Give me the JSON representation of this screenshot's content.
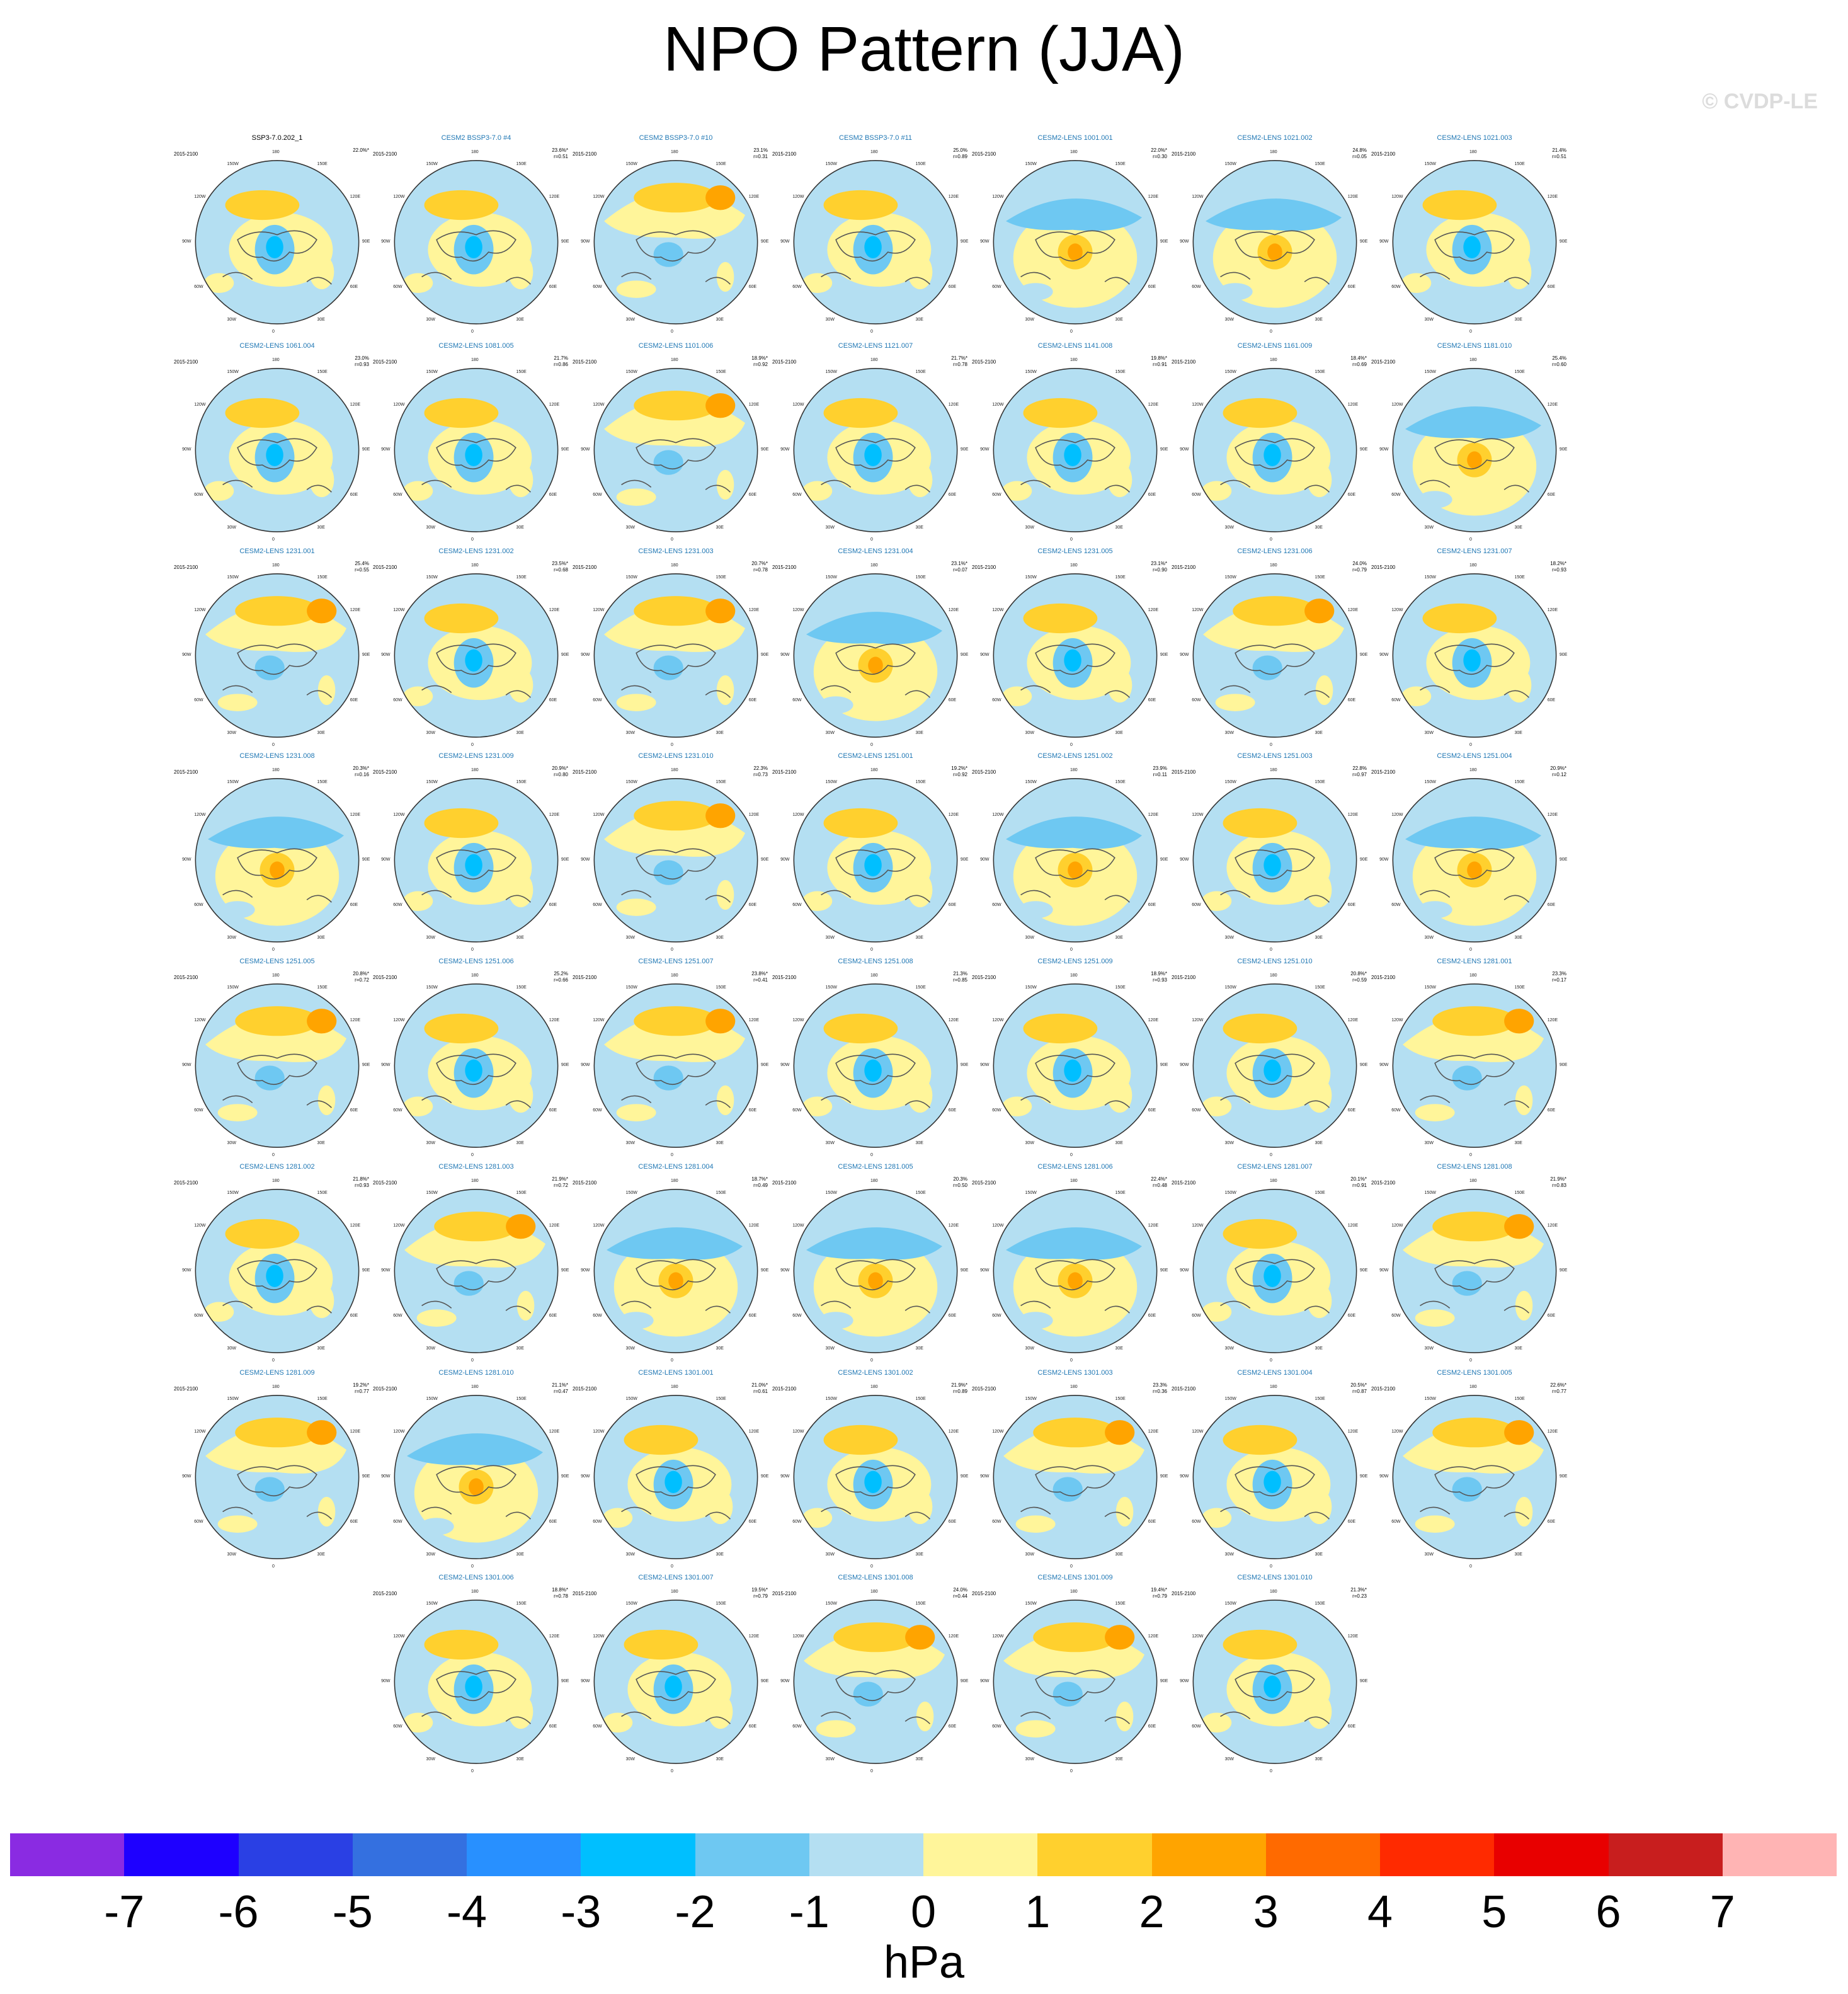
{
  "title": "NPO Pattern (JJA)",
  "copyright": "© CVDP-LE",
  "units": "hPa",
  "panel_period": "2015-2100",
  "map_labels": {
    "lon_top": "180",
    "lon_ul": "150W",
    "lon_ur": "150E",
    "lon_left_upper": "120W",
    "lon_right_upper": "120E",
    "lon_left": "90W",
    "lon_right": "90E",
    "lon_left_lower": "60W",
    "lon_right_lower": "60E",
    "lon_ll": "30W",
    "lon_lr": "30E",
    "lon_bottom": "0"
  },
  "colorbar": {
    "ticks": [
      "-7",
      "-6",
      "-5",
      "-4",
      "-3",
      "-2",
      "-1",
      "0",
      "1",
      "2",
      "3",
      "4",
      "5",
      "6",
      "7"
    ],
    "colors": [
      "#8a2be2",
      "#1e00ff",
      "#2a40e4",
      "#3470e0",
      "#2890ff",
      "#00bfff",
      "#6ec8f2",
      "#b4dff2",
      "#fff59a",
      "#ffd02e",
      "#ffa400",
      "#ff6a00",
      "#ff2a00",
      "#e80000",
      "#c81e1e",
      "#ffb4b4"
    ]
  },
  "panels": [
    {
      "title": "SSP3-7.0.202_1",
      "pct": "22.0%*",
      "r": "",
      "pattern": "A"
    },
    {
      "title": "CESM2 BSSP3-7.0 #4",
      "pct": "23.6%*",
      "r": "r=0.51",
      "pattern": "A"
    },
    {
      "title": "CESM2 BSSP3-7.0 #10",
      "pct": "23.1%",
      "r": "r=0.31",
      "pattern": "B"
    },
    {
      "title": "CESM2 BSSP3-7.0 #11",
      "pct": "25.0%",
      "r": "r=0.89",
      "pattern": "A"
    },
    {
      "title": "CESM2-LENS 1001.001",
      "pct": "22.0%*",
      "r": "r=0.30",
      "pattern": "C"
    },
    {
      "title": "CESM2-LENS 1021.002",
      "pct": "24.8%",
      "r": "r=0.05",
      "pattern": "C"
    },
    {
      "title": "CESM2-LENS 1021.003",
      "pct": "21.4%",
      "r": "r=0.51",
      "pattern": "A"
    },
    {
      "title": "CESM2-LENS 1061.004",
      "pct": "23.0%",
      "r": "r=0.93",
      "pattern": "A"
    },
    {
      "title": "CESM2-LENS 1081.005",
      "pct": "21.7%",
      "r": "r=0.86",
      "pattern": "A"
    },
    {
      "title": "CESM2-LENS 1101.006",
      "pct": "18.9%*",
      "r": "r=0.92",
      "pattern": "B"
    },
    {
      "title": "CESM2-LENS 1121.007",
      "pct": "21.7%*",
      "r": "r=0.78",
      "pattern": "A"
    },
    {
      "title": "CESM2-LENS 1141.008",
      "pct": "19.8%*",
      "r": "r=0.91",
      "pattern": "A"
    },
    {
      "title": "CESM2-LENS 1161.009",
      "pct": "18.4%*",
      "r": "r=0.69",
      "pattern": "A"
    },
    {
      "title": "CESM2-LENS 1181.010",
      "pct": "25.4%",
      "r": "r=0.60",
      "pattern": "C"
    },
    {
      "title": "CESM2-LENS 1231.001",
      "pct": "25.4%",
      "r": "r=0.55",
      "pattern": "B"
    },
    {
      "title": "CESM2-LENS 1231.002",
      "pct": "23.5%*",
      "r": "r=0.68",
      "pattern": "A"
    },
    {
      "title": "CESM2-LENS 1231.003",
      "pct": "20.7%*",
      "r": "r=0.78",
      "pattern": "B"
    },
    {
      "title": "CESM2-LENS 1231.004",
      "pct": "23.1%*",
      "r": "r=0.07",
      "pattern": "C"
    },
    {
      "title": "CESM2-LENS 1231.005",
      "pct": "23.1%*",
      "r": "r=0.90",
      "pattern": "A"
    },
    {
      "title": "CESM2-LENS 1231.006",
      "pct": "24.0%",
      "r": "r=0.79",
      "pattern": "B"
    },
    {
      "title": "CESM2-LENS 1231.007",
      "pct": "18.2%*",
      "r": "r=0.93",
      "pattern": "A"
    },
    {
      "title": "CESM2-LENS 1231.008",
      "pct": "20.3%*",
      "r": "r=0.16",
      "pattern": "C"
    },
    {
      "title": "CESM2-LENS 1231.009",
      "pct": "20.9%*",
      "r": "r=0.80",
      "pattern": "A"
    },
    {
      "title": "CESM2-LENS 1231.010",
      "pct": "22.3%",
      "r": "r=0.73",
      "pattern": "B"
    },
    {
      "title": "CESM2-LENS 1251.001",
      "pct": "19.2%*",
      "r": "r=0.92",
      "pattern": "A"
    },
    {
      "title": "CESM2-LENS 1251.002",
      "pct": "23.9%",
      "r": "r=0.11",
      "pattern": "C"
    },
    {
      "title": "CESM2-LENS 1251.003",
      "pct": "22.8%",
      "r": "r=0.97",
      "pattern": "A"
    },
    {
      "title": "CESM2-LENS 1251.004",
      "pct": "20.9%*",
      "r": "r=0.12",
      "pattern": "C"
    },
    {
      "title": "CESM2-LENS 1251.005",
      "pct": "20.8%*",
      "r": "r=0.72",
      "pattern": "B"
    },
    {
      "title": "CESM2-LENS 1251.006",
      "pct": "25.2%",
      "r": "r=0.66",
      "pattern": "A"
    },
    {
      "title": "CESM2-LENS 1251.007",
      "pct": "23.8%*",
      "r": "r=0.41",
      "pattern": "B"
    },
    {
      "title": "CESM2-LENS 1251.008",
      "pct": "21.3%",
      "r": "r=0.85",
      "pattern": "A"
    },
    {
      "title": "CESM2-LENS 1251.009",
      "pct": "18.9%*",
      "r": "r=0.93",
      "pattern": "A"
    },
    {
      "title": "CESM2-LENS 1251.010",
      "pct": "20.8%*",
      "r": "r=0.59",
      "pattern": "A"
    },
    {
      "title": "CESM2-LENS 1281.001",
      "pct": "23.3%",
      "r": "r=0.17",
      "pattern": "B"
    },
    {
      "title": "CESM2-LENS 1281.002",
      "pct": "21.8%*",
      "r": "r=0.93",
      "pattern": "A"
    },
    {
      "title": "CESM2-LENS 1281.003",
      "pct": "21.9%*",
      "r": "r=0.72",
      "pattern": "B"
    },
    {
      "title": "CESM2-LENS 1281.004",
      "pct": "18.7%*",
      "r": "r=0.49",
      "pattern": "C"
    },
    {
      "title": "CESM2-LENS 1281.005",
      "pct": "20.3%",
      "r": "r=0.50",
      "pattern": "C"
    },
    {
      "title": "CESM2-LENS 1281.006",
      "pct": "22.4%*",
      "r": "r=0.48",
      "pattern": "C"
    },
    {
      "title": "CESM2-LENS 1281.007",
      "pct": "20.1%*",
      "r": "r=0.91",
      "pattern": "A"
    },
    {
      "title": "CESM2-LENS 1281.008",
      "pct": "21.9%*",
      "r": "r=0.83",
      "pattern": "B"
    },
    {
      "title": "CESM2-LENS 1281.009",
      "pct": "19.2%*",
      "r": "r=0.77",
      "pattern": "B"
    },
    {
      "title": "CESM2-LENS 1281.010",
      "pct": "21.1%*",
      "r": "r=0.47",
      "pattern": "C"
    },
    {
      "title": "CESM2-LENS 1301.001",
      "pct": "21.0%*",
      "r": "r=0.61",
      "pattern": "A"
    },
    {
      "title": "CESM2-LENS 1301.002",
      "pct": "21.9%*",
      "r": "r=0.89",
      "pattern": "A"
    },
    {
      "title": "CESM2-LENS 1301.003",
      "pct": "23.3%",
      "r": "r=0.36",
      "pattern": "B"
    },
    {
      "title": "CESM2-LENS 1301.004",
      "pct": "20.5%*",
      "r": "r=0.87",
      "pattern": "A"
    },
    {
      "title": "CESM2-LENS 1301.005",
      "pct": "22.6%*",
      "r": "r=0.77",
      "pattern": "B"
    },
    {
      "title": "CESM2-LENS 1301.006",
      "pct": "18.8%*",
      "r": "r=0.78",
      "pattern": "A"
    },
    {
      "title": "CESM2-LENS 1301.007",
      "pct": "19.5%*",
      "r": "r=0.79",
      "pattern": "A"
    },
    {
      "title": "CESM2-LENS 1301.008",
      "pct": "24.0%",
      "r": "r=0.44",
      "pattern": "B"
    },
    {
      "title": "CESM2-LENS 1301.009",
      "pct": "19.4%*",
      "r": "r=0.79",
      "pattern": "B"
    },
    {
      "title": "CESM2-LENS 1301.010",
      "pct": "21.3%*",
      "r": "r=0.23",
      "pattern": "A"
    }
  ]
}
